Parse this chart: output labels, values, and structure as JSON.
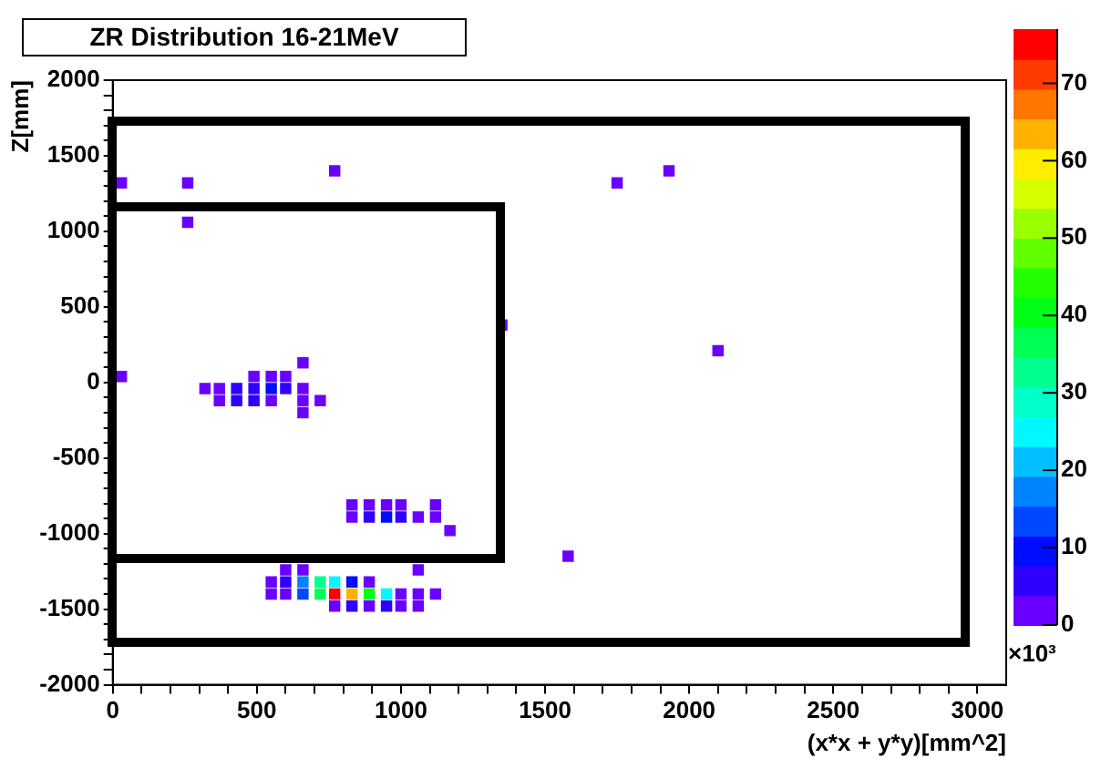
{
  "chart_data": {
    "type": "scatter",
    "title": "ZR Distribution 16-21MeV",
    "xlabel": "(x*x + y*y)[mm^2]",
    "ylabel": "Z[mm]",
    "xlim": [
      0,
      3100
    ],
    "ylim": [
      -2000,
      2000
    ],
    "xticks": [
      0,
      {
        "value": 100,
        "label": null
      },
      {
        "value": 200,
        "label": null
      },
      {
        "value": 300,
        "label": null
      },
      {
        "value": 400,
        "label": null
      },
      500,
      {
        "value": 600,
        "label": null
      },
      {
        "value": 700,
        "label": null
      },
      {
        "value": 800,
        "label": null
      },
      {
        "value": 900,
        "label": null
      },
      1000,
      {
        "value": 1100,
        "label": null
      },
      {
        "value": 1200,
        "label": null
      },
      {
        "value": 1300,
        "label": null
      },
      {
        "value": 1400,
        "label": null
      },
      1500,
      {
        "value": 1600,
        "label": null
      },
      {
        "value": 1700,
        "label": null
      },
      {
        "value": 1800,
        "label": null
      },
      {
        "value": 1900,
        "label": null
      },
      2000,
      {
        "value": 2100,
        "label": null
      },
      {
        "value": 2200,
        "label": null
      },
      {
        "value": 2300,
        "label": null
      },
      {
        "value": 2400,
        "label": null
      },
      2500,
      {
        "value": 2600,
        "label": null
      },
      {
        "value": 2700,
        "label": null
      },
      {
        "value": 2800,
        "label": null
      },
      {
        "value": 2900,
        "label": null
      },
      3000
    ],
    "yticks": [
      -2000,
      {
        "value": -1900,
        "label": null
      },
      {
        "value": -1800,
        "label": null
      },
      {
        "value": -1700,
        "label": null
      },
      {
        "value": -1600,
        "label": null
      },
      -1500,
      {
        "value": -1400,
        "label": null
      },
      {
        "value": -1300,
        "label": null
      },
      {
        "value": -1200,
        "label": null
      },
      {
        "value": -1100,
        "label": null
      },
      -1000,
      {
        "value": -900,
        "label": null
      },
      {
        "value": -800,
        "label": null
      },
      {
        "value": -700,
        "label": null
      },
      {
        "value": -600,
        "label": null
      },
      -500,
      {
        "value": -400,
        "label": null
      },
      {
        "value": -300,
        "label": null
      },
      {
        "value": -200,
        "label": null
      },
      {
        "value": -100,
        "label": null
      },
      0,
      {
        "value": 100,
        "label": null
      },
      {
        "value": 200,
        "label": null
      },
      {
        "value": 300,
        "label": null
      },
      {
        "value": 400,
        "label": null
      },
      500,
      {
        "value": 600,
        "label": null
      },
      {
        "value": 700,
        "label": null
      },
      {
        "value": 800,
        "label": null
      },
      {
        "value": 900,
        "label": null
      },
      1000,
      {
        "value": 1100,
        "label": null
      },
      {
        "value": 1200,
        "label": null
      },
      {
        "value": 1300,
        "label": null
      },
      {
        "value": 1400,
        "label": null
      },
      1500,
      {
        "value": 1600,
        "label": null
      },
      {
        "value": 1700,
        "label": null
      },
      {
        "value": 1800,
        "label": null
      },
      {
        "value": 1900,
        "label": null
      },
      2000
    ],
    "clim": [
      0,
      77
    ],
    "cticks": [
      0,
      10,
      20,
      30,
      40,
      50,
      60,
      70
    ],
    "grid": false,
    "legend": false,
    "marker": "square",
    "annotations": [
      "×10³"
    ],
    "x": [
      30,
      260,
      260,
      770,
      1350,
      660,
      1750,
      1930,
      2100,
      1580,
      30,
      490,
      550,
      600,
      320,
      370,
      430,
      490,
      550,
      600,
      660,
      370,
      430,
      490,
      550,
      660,
      720,
      660,
      830,
      890,
      950,
      1000,
      1120,
      830,
      890,
      950,
      1000,
      1060,
      1120,
      1170,
      600,
      660,
      1060,
      550,
      600,
      660,
      720,
      770,
      830,
      890,
      550,
      600,
      660,
      720,
      770,
      830,
      890,
      950,
      1000,
      1060,
      1120,
      770,
      830,
      890,
      950,
      1000,
      1060
    ],
    "values": [
      1320,
      1320,
      1060,
      1400,
      380,
      130,
      1320,
      1400,
      210,
      -1150,
      40,
      40,
      40,
      40,
      -40,
      -40,
      -40,
      -40,
      -40,
      -40,
      -40,
      -120,
      -120,
      -120,
      -120,
      -120,
      -120,
      -200,
      -810,
      -810,
      -810,
      -810,
      -810,
      -890,
      -890,
      -890,
      -890,
      -890,
      -890,
      -980,
      -1240,
      -1240,
      -1240,
      -1320,
      -1320,
      -1320,
      -1320,
      -1320,
      -1320,
      -1320,
      -1400,
      -1400,
      -1400,
      -1400,
      -1400,
      -1400,
      -1400,
      -1400,
      -1400,
      -1400,
      -1400,
      -1480,
      -1480,
      -1480,
      -1480,
      -1480,
      -1480
    ],
    "cvalues": [
      2,
      2,
      2,
      2,
      2,
      2,
      2,
      2,
      2,
      2,
      2,
      2,
      2,
      2,
      2,
      2,
      6,
      6,
      10,
      6,
      2,
      2,
      6,
      6,
      2,
      2,
      2,
      2,
      2,
      2,
      2,
      2,
      2,
      2,
      6,
      10,
      6,
      2,
      2,
      2,
      2,
      2,
      2,
      2,
      6,
      19,
      32,
      24,
      11,
      2,
      2,
      2,
      15,
      38,
      75,
      63,
      42,
      24,
      2,
      2,
      2,
      2,
      6,
      2,
      6,
      2,
      2
    ]
  }
}
